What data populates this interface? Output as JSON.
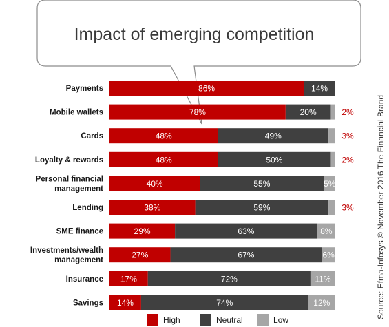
{
  "chart_data": {
    "type": "bar",
    "orientation": "horizontal",
    "stacked": true,
    "title": "Impact of emerging competition",
    "categories": [
      "Payments",
      "Mobile wallets",
      "Cards",
      "Loyalty & rewards",
      "Personal financial management",
      "Lending",
      "SME finance",
      "Investments/wealth management",
      "Insurance",
      "Savings"
    ],
    "category_lines": [
      [
        "Payments"
      ],
      [
        "Mobile wallets"
      ],
      [
        "Cards"
      ],
      [
        "Loyalty & rewards"
      ],
      [
        "Personal financial",
        "management"
      ],
      [
        "Lending"
      ],
      [
        "SME finance"
      ],
      [
        "Investments/wealth",
        "management"
      ],
      [
        "Insurance"
      ],
      [
        "Savings"
      ]
    ],
    "series": [
      {
        "name": "High",
        "color": "#c00000",
        "values": [
          86,
          78,
          48,
          48,
          40,
          38,
          29,
          27,
          17,
          14
        ]
      },
      {
        "name": "Neutral",
        "color": "#404040",
        "values": [
          14,
          20,
          49,
          50,
          55,
          59,
          63,
          67,
          72,
          74
        ]
      },
      {
        "name": "Low",
        "color": "#a6a6a6",
        "values": [
          0,
          2,
          3,
          2,
          5,
          3,
          8,
          6,
          11,
          12
        ]
      }
    ],
    "data_labels": [
      [
        "86%",
        "14%",
        ""
      ],
      [
        "78%",
        "20%",
        "2%"
      ],
      [
        "48%",
        "49%",
        "3%"
      ],
      [
        "48%",
        "50%",
        "2%"
      ],
      [
        "40%",
        "55%",
        "5%"
      ],
      [
        "38%",
        "59%",
        "3%"
      ],
      [
        "29%",
        "63%",
        "8%"
      ],
      [
        "27%",
        "67%",
        "6%"
      ],
      [
        "17%",
        "72%",
        "11%"
      ],
      [
        "14%",
        "74%",
        "12%"
      ]
    ],
    "xlim": [
      0,
      100
    ],
    "grid": false,
    "legend_placement": "bottom",
    "outside_label_color": "#c00000",
    "source": "Source: Efma-Infosys © November  2016 The Financial Brand"
  }
}
